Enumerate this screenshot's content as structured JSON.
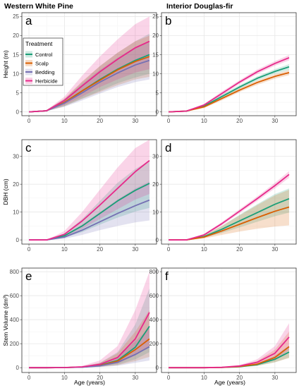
{
  "column_titles": [
    "Western White Pine",
    "Interior Douglas-fir"
  ],
  "legend": {
    "title": "Treatment",
    "items": [
      {
        "label": "Control",
        "color": "#1b9e77"
      },
      {
        "label": "Scalp",
        "color": "#d95f02"
      },
      {
        "label": "Bedding",
        "color": "#7570b3"
      },
      {
        "label": "Herbicide",
        "color": "#e7298a"
      }
    ],
    "placement": "inside panel a, top-left"
  },
  "xlabel": "Age (years)",
  "chart_data": [
    {
      "type": "line",
      "panel": "a",
      "column": "Western White Pine",
      "ylabel": "Height (m)",
      "ylim": [
        -1,
        26
      ],
      "yticks": [
        0,
        5,
        10,
        15,
        20,
        25
      ],
      "xlim": [
        -2,
        36
      ],
      "xticks": [
        0,
        10,
        20,
        30
      ],
      "grid": true,
      "x": [
        0,
        5,
        10,
        15,
        20,
        25,
        30,
        34
      ],
      "series": [
        {
          "name": "Control",
          "values": [
            0,
            0.3,
            2.5,
            5.5,
            8.5,
            11.2,
            13.5,
            15.0
          ],
          "lower": [
            0,
            0.2,
            1.5,
            3.5,
            5.5,
            7.5,
            9.0,
            10.0
          ],
          "upper": [
            0,
            0.5,
            3.3,
            7.8,
            12.0,
            15.5,
            18.5,
            20.5
          ]
        },
        {
          "name": "Scalp",
          "values": [
            0,
            0.3,
            2.5,
            5.5,
            8.3,
            11.0,
            13.2,
            14.5
          ],
          "lower": [
            0,
            0.2,
            1.5,
            3.4,
            5.2,
            7.0,
            8.5,
            9.2
          ],
          "upper": [
            0,
            0.5,
            3.5,
            8.0,
            12.0,
            15.5,
            18.5,
            20.0
          ]
        },
        {
          "name": "Bedding",
          "values": [
            0,
            0.3,
            2.3,
            5.0,
            7.8,
            10.2,
            12.3,
            13.5
          ],
          "lower": [
            0,
            0.2,
            1.3,
            3.0,
            4.8,
            6.5,
            7.8,
            8.5
          ],
          "upper": [
            0,
            0.5,
            3.3,
            7.3,
            11.0,
            14.2,
            17.0,
            18.5
          ]
        },
        {
          "name": "Herbicide",
          "values": [
            0,
            0.3,
            3.0,
            6.8,
            10.5,
            13.8,
            16.8,
            18.5
          ],
          "lower": [
            0,
            0.2,
            1.8,
            4.0,
            6.5,
            8.5,
            10.3,
            11.2
          ],
          "upper": [
            0,
            0.5,
            4.0,
            9.5,
            14.5,
            19.0,
            23.0,
            25.0
          ]
        }
      ]
    },
    {
      "type": "line",
      "panel": "b",
      "column": "Interior Douglas-fir",
      "ylabel": "",
      "ylim": [
        -1,
        26
      ],
      "yticks": [
        0,
        5,
        10,
        15,
        20,
        25
      ],
      "xlim": [
        -2,
        36
      ],
      "xticks": [
        0,
        10,
        20,
        30
      ],
      "grid": true,
      "x": [
        0,
        5,
        10,
        15,
        20,
        25,
        30,
        34
      ],
      "series": [
        {
          "name": "Control",
          "values": [
            0,
            0.2,
            1.5,
            4.0,
            6.5,
            8.8,
            10.6,
            11.8
          ],
          "lower": [
            0,
            0.15,
            1.2,
            3.5,
            6.0,
            8.2,
            10.0,
            11.0
          ],
          "upper": [
            0,
            0.3,
            1.8,
            4.5,
            7.0,
            9.3,
            11.2,
            12.5
          ]
        },
        {
          "name": "Scalp",
          "values": [
            0,
            0.2,
            1.3,
            3.5,
            5.7,
            7.7,
            9.3,
            10.3
          ],
          "lower": [
            0,
            0.15,
            1.0,
            3.0,
            5.2,
            7.1,
            8.7,
            9.6
          ],
          "upper": [
            0,
            0.3,
            1.6,
            4.0,
            6.2,
            8.2,
            9.9,
            11.0
          ]
        },
        {
          "name": "Herbicide",
          "values": [
            0,
            0.2,
            1.8,
            4.8,
            7.8,
            10.5,
            12.7,
            14.2
          ],
          "lower": [
            0,
            0.15,
            1.5,
            4.3,
            7.3,
            9.9,
            12.1,
            13.5
          ],
          "upper": [
            0,
            0.3,
            2.1,
            5.3,
            8.3,
            11.1,
            13.3,
            14.9
          ]
        }
      ]
    },
    {
      "type": "line",
      "panel": "c",
      "column": "Western White Pine",
      "ylabel": "DBH (cm)",
      "ylim": [
        -1.5,
        36
      ],
      "yticks": [
        0,
        10,
        20,
        30
      ],
      "xlim": [
        -2,
        36
      ],
      "xticks": [
        0,
        10,
        20,
        30
      ],
      "grid": true,
      "x": [
        0,
        5,
        10,
        15,
        20,
        25,
        30,
        34
      ],
      "series": [
        {
          "name": "Control",
          "values": [
            0,
            0,
            1.5,
            5.0,
            9.5,
            14.0,
            17.8,
            20.3
          ],
          "lower": [
            0,
            0,
            0.8,
            2.8,
            5.5,
            8.0,
            10.2,
            11.5
          ],
          "upper": [
            0,
            0,
            2.3,
            7.5,
            14.0,
            20.5,
            25.5,
            28.5
          ]
        },
        {
          "name": "Bedding",
          "values": [
            0,
            0,
            1.0,
            3.5,
            6.5,
            9.5,
            12.3,
            14.3
          ],
          "lower": [
            0,
            0,
            0.4,
            1.8,
            3.5,
            5.0,
            6.3,
            7.0
          ],
          "upper": [
            0,
            0,
            1.8,
            5.5,
            10.0,
            14.5,
            18.5,
            21.0
          ]
        },
        {
          "name": "Herbicide",
          "values": [
            0,
            0,
            2.0,
            6.8,
            12.5,
            18.5,
            24.5,
            28.5
          ],
          "lower": [
            0,
            0,
            1.0,
            4.0,
            7.5,
            11.0,
            14.5,
            16.5
          ],
          "upper": [
            0,
            0,
            3.2,
            10.0,
            18.0,
            26.0,
            33.0,
            36.0
          ]
        }
      ]
    },
    {
      "type": "line",
      "panel": "d",
      "column": "Interior Douglas-fir",
      "ylabel": "",
      "ylim": [
        -1.5,
        36
      ],
      "yticks": [
        0,
        10,
        20,
        30
      ],
      "xlim": [
        -2,
        36
      ],
      "xticks": [
        0,
        10,
        20,
        30
      ],
      "grid": true,
      "x": [
        0,
        5,
        10,
        15,
        20,
        25,
        30,
        34
      ],
      "series": [
        {
          "name": "Control",
          "values": [
            0,
            0,
            1.2,
            3.8,
            6.8,
            9.8,
            12.8,
            14.8
          ],
          "lower": [
            0,
            0,
            0.8,
            2.5,
            4.5,
            6.5,
            8.5,
            9.8
          ],
          "upper": [
            0,
            0,
            1.6,
            5.0,
            9.0,
            12.8,
            16.5,
            18.5
          ]
        },
        {
          "name": "Scalp",
          "values": [
            0,
            0,
            1.0,
            3.2,
            5.6,
            8.0,
            10.3,
            11.8
          ],
          "lower": [
            0,
            0,
            0.5,
            1.8,
            3.0,
            4.0,
            4.8,
            5.2
          ],
          "upper": [
            0,
            0,
            1.6,
            5.0,
            8.8,
            12.5,
            16.0,
            18.0
          ]
        },
        {
          "name": "Herbicide",
          "values": [
            0,
            0,
            1.8,
            5.8,
            10.3,
            14.8,
            19.5,
            23.5
          ],
          "lower": [
            0,
            0,
            1.4,
            5.2,
            9.6,
            14.0,
            18.5,
            22.3
          ],
          "upper": [
            0,
            0,
            2.2,
            6.4,
            11.0,
            15.6,
            20.5,
            24.7
          ]
        }
      ]
    },
    {
      "type": "line",
      "panel": "e",
      "column": "Western White Pine",
      "ylabel": "Stem Volume (dm³)",
      "ylim": [
        -40,
        830
      ],
      "yticks": [
        0,
        200,
        400,
        600,
        800
      ],
      "xlim": [
        -2,
        36
      ],
      "xticks": [
        0,
        10,
        20,
        30
      ],
      "grid": true,
      "x": [
        0,
        5,
        10,
        15,
        20,
        25,
        30,
        34
      ],
      "series": [
        {
          "name": "Control",
          "values": [
            0,
            0,
            1,
            5,
            20,
            60,
            170,
            345
          ],
          "lower": [
            0,
            0,
            0,
            2,
            8,
            25,
            70,
            130
          ],
          "upper": [
            0,
            0,
            2,
            10,
            40,
            130,
            360,
            660
          ]
        },
        {
          "name": "Scalp",
          "values": [
            0,
            0,
            1,
            5,
            18,
            55,
            150,
            240
          ],
          "lower": [
            0,
            0,
            0,
            2,
            7,
            20,
            55,
            90
          ],
          "upper": [
            0,
            0,
            2,
            10,
            40,
            120,
            300,
            480
          ]
        },
        {
          "name": "Bedding",
          "values": [
            0,
            0,
            1,
            4,
            15,
            45,
            110,
            175
          ],
          "lower": [
            0,
            0,
            0,
            1,
            5,
            15,
            40,
            60
          ],
          "upper": [
            0,
            0,
            2,
            8,
            30,
            90,
            220,
            330
          ]
        },
        {
          "name": "Herbicide",
          "values": [
            0,
            0,
            1,
            7,
            28,
            85,
            240,
            460
          ],
          "lower": [
            0,
            0,
            0,
            3,
            12,
            35,
            100,
            180
          ],
          "upper": [
            0,
            0,
            3,
            15,
            60,
            180,
            480,
            800
          ]
        }
      ]
    },
    {
      "type": "line",
      "panel": "f",
      "column": "Interior Douglas-fir",
      "ylabel": "",
      "ylim": [
        -40,
        830
      ],
      "yticks": [
        0,
        200,
        400,
        600,
        800
      ],
      "xlim": [
        -2,
        36
      ],
      "xticks": [
        0,
        10,
        20,
        30
      ],
      "grid": true,
      "x": [
        0,
        5,
        10,
        15,
        20,
        25,
        30,
        34
      ],
      "series": [
        {
          "name": "Control",
          "values": [
            0,
            0,
            0,
            2,
            8,
            25,
            70,
            130
          ],
          "lower": [
            0,
            0,
            0,
            1,
            5,
            15,
            45,
            85
          ],
          "upper": [
            0,
            0,
            1,
            3,
            12,
            35,
            100,
            185
          ]
        },
        {
          "name": "Scalp",
          "values": [
            0,
            0,
            0,
            2,
            10,
            30,
            85,
            175
          ],
          "lower": [
            0,
            0,
            0,
            1,
            5,
            15,
            45,
            80
          ],
          "upper": [
            0,
            0,
            1,
            4,
            18,
            55,
            150,
            300
          ]
        },
        {
          "name": "Herbicide",
          "values": [
            0,
            0,
            0,
            3,
            14,
            45,
            120,
            255
          ],
          "lower": [
            0,
            0,
            0,
            1,
            6,
            22,
            65,
            145
          ],
          "upper": [
            0,
            0,
            1,
            5,
            22,
            70,
            180,
            370
          ]
        }
      ]
    }
  ]
}
